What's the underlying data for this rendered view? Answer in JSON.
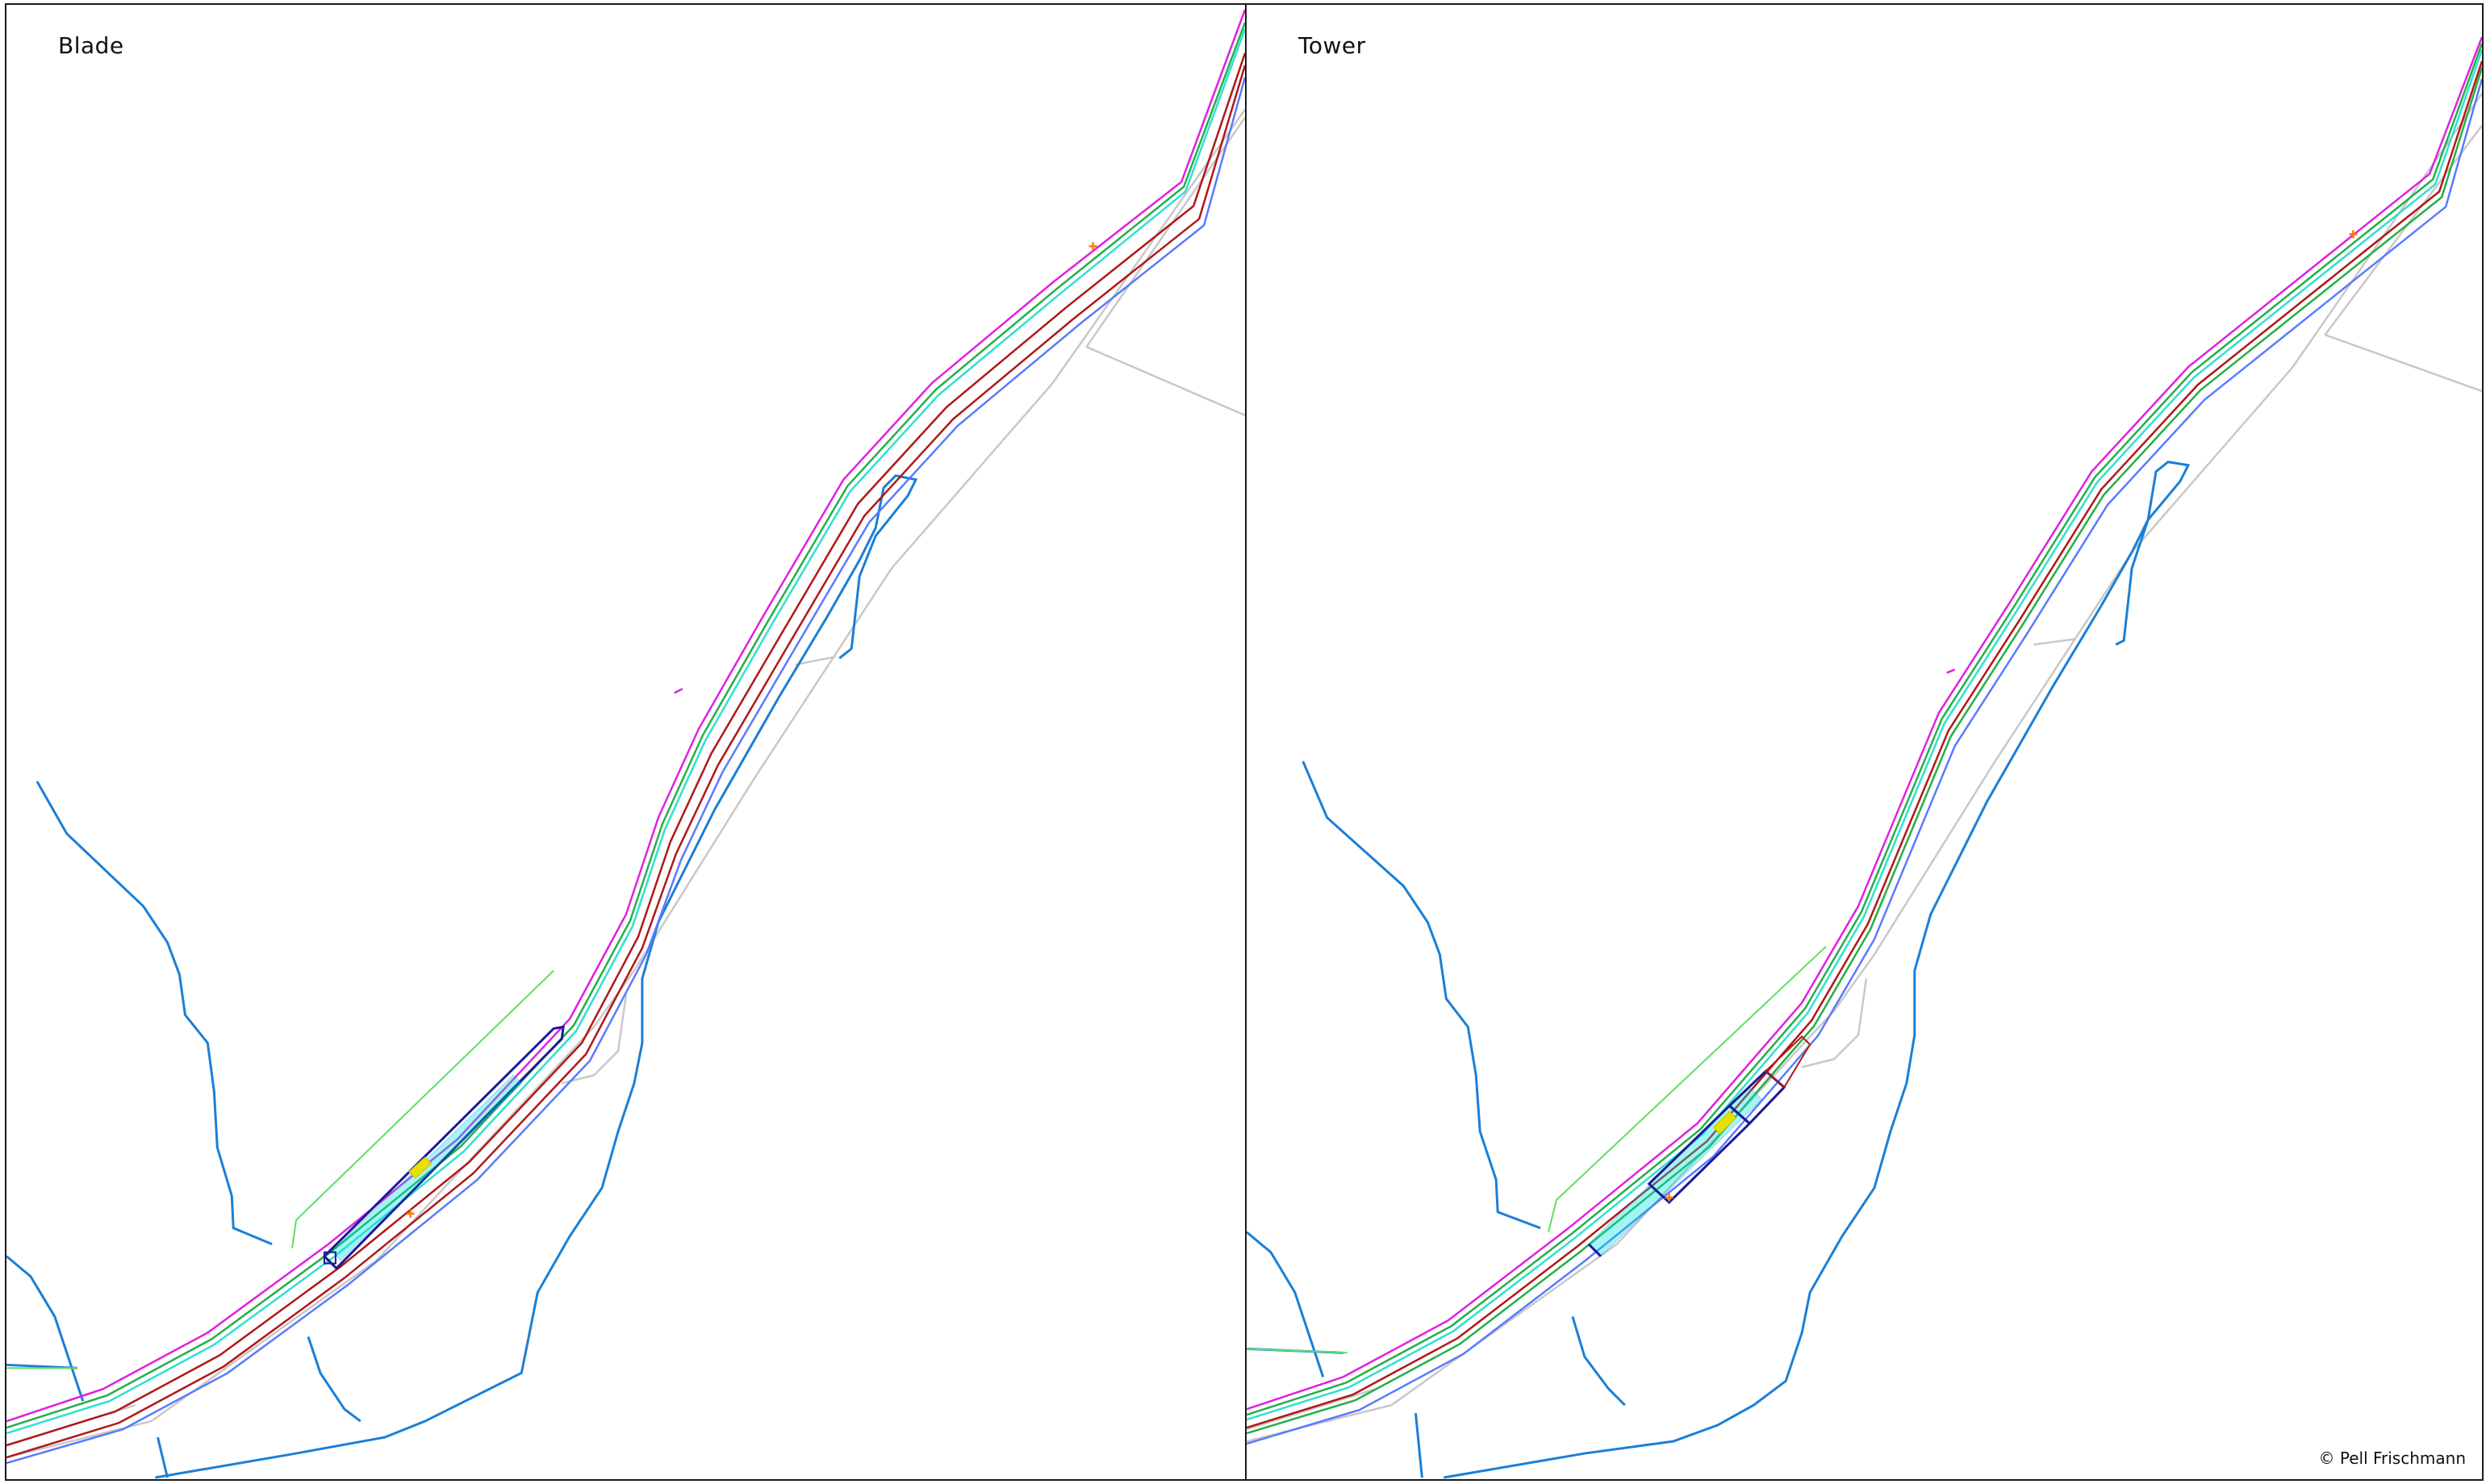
{
  "panels": [
    {
      "title": "Blade"
    },
    {
      "title": "Tower"
    }
  ],
  "copyright": "© Pell Frischmann",
  "colors": {
    "road_magenta": "#e020e0",
    "road_green": "#22b04a",
    "road_cyan": "#30e0d0",
    "road_red": "#b01818",
    "road_blue": "#5a7aff",
    "watercourse": "#1a7fd6",
    "boundary_grey": "#c8c8c8",
    "green_line": "#5de060",
    "marker_orange": "#ff7a00",
    "laydown_navy": "#1a1a9a",
    "laydown_cyan": "#00e0e0",
    "laydown_yellow": "#e8e000",
    "frame": "#1a1a1a"
  }
}
